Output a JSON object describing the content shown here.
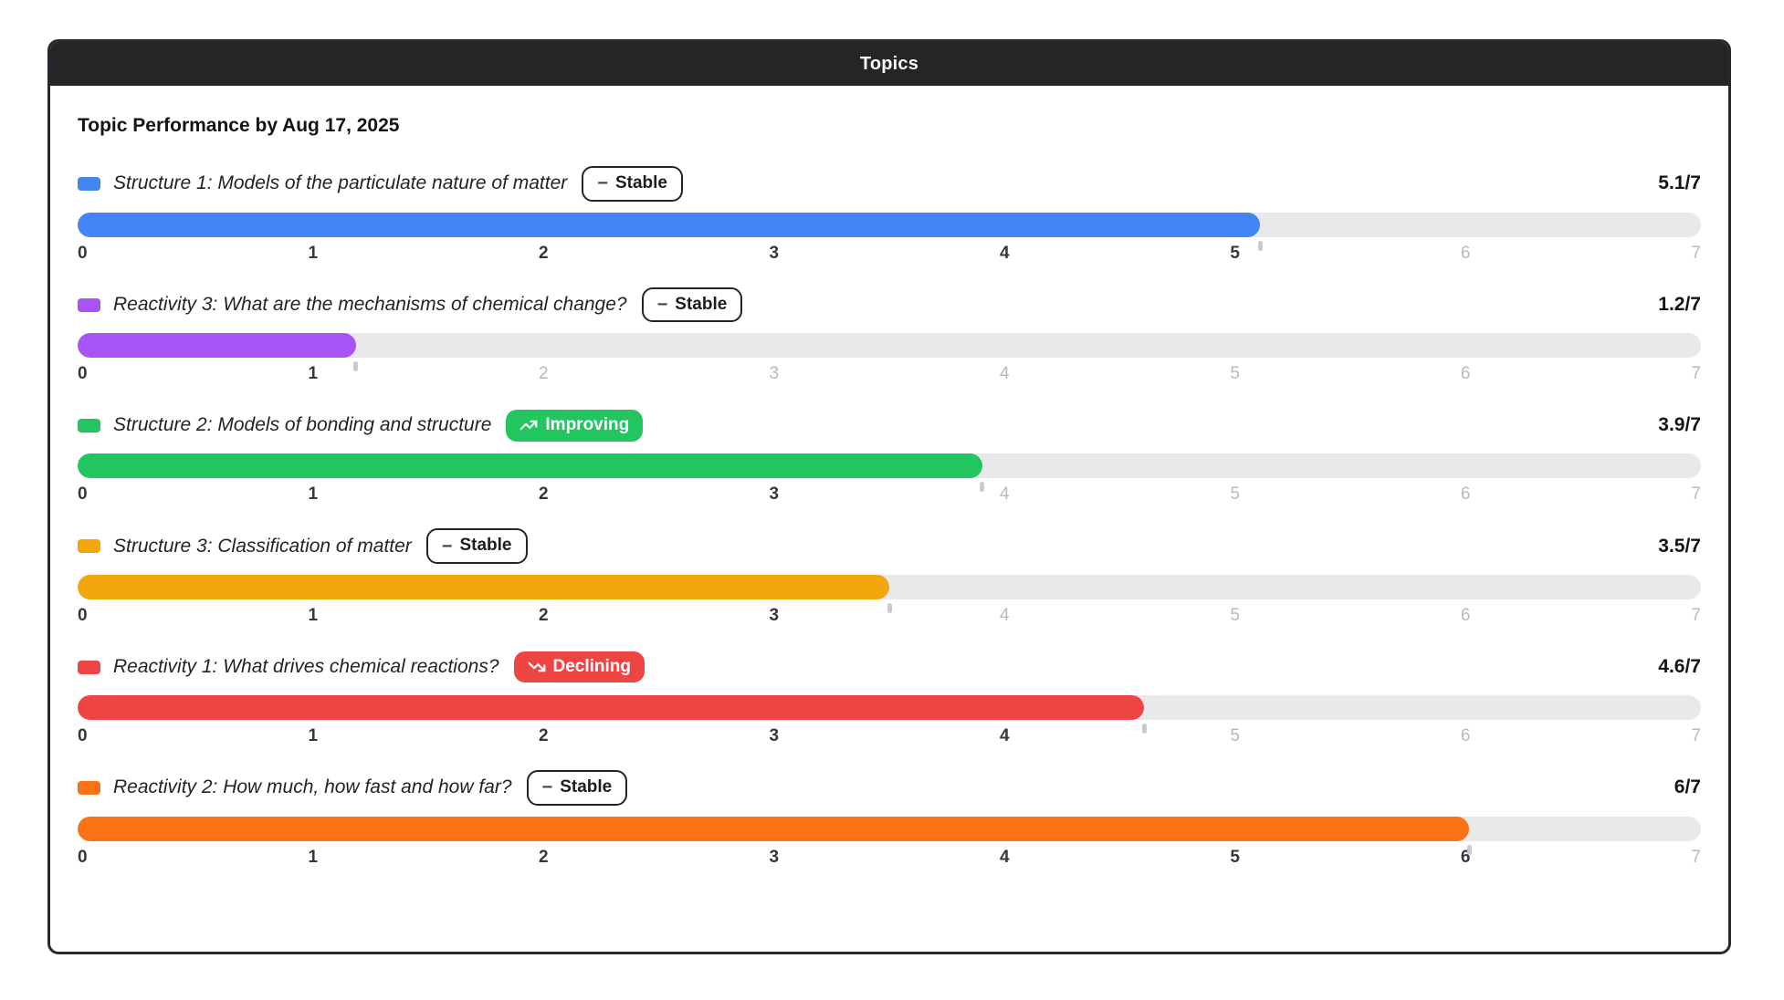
{
  "window": {
    "title": "Topics"
  },
  "heading": "Topic Performance by Aug 17, 2025",
  "scale": {
    "min": 0,
    "max": 7,
    "ticks": [
      "0",
      "1",
      "2",
      "3",
      "4",
      "5",
      "6",
      "7"
    ]
  },
  "colors": {
    "header_bg": "#242527",
    "panel_border": "#26292d",
    "track": "#e9e9ec",
    "badge_improving_bg": "#22c55e",
    "badge_declining_bg": "#ef4444",
    "tick_active": "#34383e",
    "tick_inactive": "#b7b9be"
  },
  "topics": [
    {
      "label": "Structure 1: Models of the particulate nature of matter",
      "trend": "stable",
      "trend_label": "Stable",
      "score": 5.1,
      "score_label": "5.1/7",
      "color": "#4285f4"
    },
    {
      "label": "Reactivity 3: What are the mechanisms of chemical change?",
      "trend": "stable",
      "trend_label": "Stable",
      "score": 1.2,
      "score_label": "1.2/7",
      "color": "#a855f7"
    },
    {
      "label": "Structure 2: Models of bonding and structure",
      "trend": "improving",
      "trend_label": "Improving",
      "score": 3.9,
      "score_label": "3.9/7",
      "color": "#22c55e"
    },
    {
      "label": "Structure 3: Classification of matter",
      "trend": "stable",
      "trend_label": "Stable",
      "score": 3.5,
      "score_label": "3.5/7",
      "color": "#f2a60c"
    },
    {
      "label": "Reactivity 1: What drives chemical reactions?",
      "trend": "declining",
      "trend_label": "Declining",
      "score": 4.6,
      "score_label": "4.6/7",
      "color": "#ef4444"
    },
    {
      "label": "Reactivity 2: How much, how fast and how far?",
      "trend": "stable",
      "trend_label": "Stable",
      "score": 6,
      "score_label": "6/7",
      "color": "#f97316"
    }
  ],
  "chart_data": {
    "type": "bar",
    "orientation": "horizontal",
    "title": "Topic Performance by Aug 17, 2025",
    "categories": [
      "Structure 1: Models of the particulate nature of matter",
      "Reactivity 3: What are the mechanisms of chemical change?",
      "Structure 2: Models of bonding and structure",
      "Structure 3: Classification of matter",
      "Reactivity 1: What drives chemical reactions?",
      "Reactivity 2: How much, how fast and how far?"
    ],
    "values": [
      5.1,
      1.2,
      3.9,
      3.5,
      4.6,
      6
    ],
    "value_labels": [
      "5.1/7",
      "1.2/7",
      "3.9/7",
      "3.5/7",
      "4.6/7",
      "6/7"
    ],
    "trends": [
      "Stable",
      "Stable",
      "Improving",
      "Stable",
      "Declining",
      "Stable"
    ],
    "bar_colors": [
      "#4285f4",
      "#a855f7",
      "#22c55e",
      "#f2a60c",
      "#ef4444",
      "#f97316"
    ],
    "xlabel": "",
    "ylabel": "",
    "xlim": [
      0,
      7
    ],
    "tick_labels": [
      "0",
      "1",
      "2",
      "3",
      "4",
      "5",
      "6",
      "7"
    ],
    "grid": false,
    "legend_position": "none"
  }
}
